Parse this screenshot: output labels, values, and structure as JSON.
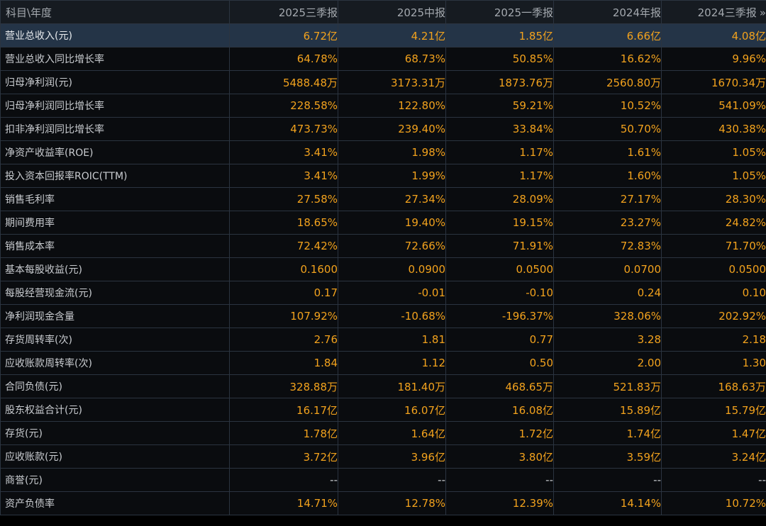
{
  "header": {
    "label_col": "科目\\年度",
    "periods": [
      "2025三季报",
      "2025中报",
      "2025一季报",
      "2024年报",
      "2024三季报"
    ],
    "more_icon": "»"
  },
  "rows": [
    {
      "label": "营业总收入(元)",
      "values": [
        "6.72亿",
        "4.21亿",
        "1.85亿",
        "6.66亿",
        "4.08亿"
      ]
    },
    {
      "label": "营业总收入同比增长率",
      "values": [
        "64.78%",
        "68.73%",
        "50.85%",
        "16.62%",
        "9.96%"
      ]
    },
    {
      "label": "归母净利润(元)",
      "values": [
        "5488.48万",
        "3173.31万",
        "1873.76万",
        "2560.80万",
        "1670.34万"
      ]
    },
    {
      "label": "归母净利润同比增长率",
      "values": [
        "228.58%",
        "122.80%",
        "59.21%",
        "10.52%",
        "541.09%"
      ]
    },
    {
      "label": "扣非净利润同比增长率",
      "values": [
        "473.73%",
        "239.40%",
        "33.84%",
        "50.70%",
        "430.38%"
      ]
    },
    {
      "label": "净资产收益率(ROE)",
      "values": [
        "3.41%",
        "1.98%",
        "1.17%",
        "1.61%",
        "1.05%"
      ]
    },
    {
      "label": "投入资本回报率ROIC(TTM)",
      "values": [
        "3.41%",
        "1.99%",
        "1.17%",
        "1.60%",
        "1.05%"
      ]
    },
    {
      "label": "销售毛利率",
      "values": [
        "27.58%",
        "27.34%",
        "28.09%",
        "27.17%",
        "28.30%"
      ]
    },
    {
      "label": "期间费用率",
      "values": [
        "18.65%",
        "19.40%",
        "19.15%",
        "23.27%",
        "24.82%"
      ]
    },
    {
      "label": "销售成本率",
      "values": [
        "72.42%",
        "72.66%",
        "71.91%",
        "72.83%",
        "71.70%"
      ]
    },
    {
      "label": "基本每股收益(元)",
      "values": [
        "0.1600",
        "0.0900",
        "0.0500",
        "0.0700",
        "0.0500"
      ]
    },
    {
      "label": "每股经营现金流(元)",
      "values": [
        "0.17",
        "-0.01",
        "-0.10",
        "0.24",
        "0.10"
      ]
    },
    {
      "label": "净利润现金含量",
      "values": [
        "107.92%",
        "-10.68%",
        "-196.37%",
        "328.06%",
        "202.92%"
      ]
    },
    {
      "label": "存货周转率(次)",
      "values": [
        "2.76",
        "1.81",
        "0.77",
        "3.28",
        "2.18"
      ]
    },
    {
      "label": "应收账款周转率(次)",
      "values": [
        "1.84",
        "1.12",
        "0.50",
        "2.00",
        "1.30"
      ]
    },
    {
      "label": "合同负债(元)",
      "values": [
        "328.88万",
        "181.40万",
        "468.65万",
        "521.83万",
        "168.63万"
      ]
    },
    {
      "label": "股东权益合计(元)",
      "values": [
        "16.17亿",
        "16.07亿",
        "16.08亿",
        "15.89亿",
        "15.79亿"
      ]
    },
    {
      "label": "存货(元)",
      "values": [
        "1.78亿",
        "1.64亿",
        "1.72亿",
        "1.74亿",
        "1.47亿"
      ]
    },
    {
      "label": "应收账款(元)",
      "values": [
        "3.72亿",
        "3.96亿",
        "3.80亿",
        "3.59亿",
        "3.24亿"
      ]
    },
    {
      "label": "商誉(元)",
      "values": [
        "--",
        "--",
        "--",
        "--",
        "--"
      ]
    },
    {
      "label": "资产负债率",
      "values": [
        "14.71%",
        "12.78%",
        "12.39%",
        "14.14%",
        "10.72%"
      ]
    }
  ],
  "selected_row": 0,
  "colors": {
    "value": "#f2a21d",
    "label": "#c9ccd0",
    "header_text": "#a3a8ae",
    "selected_bg": "#243447",
    "grid": "#2b3440"
  }
}
